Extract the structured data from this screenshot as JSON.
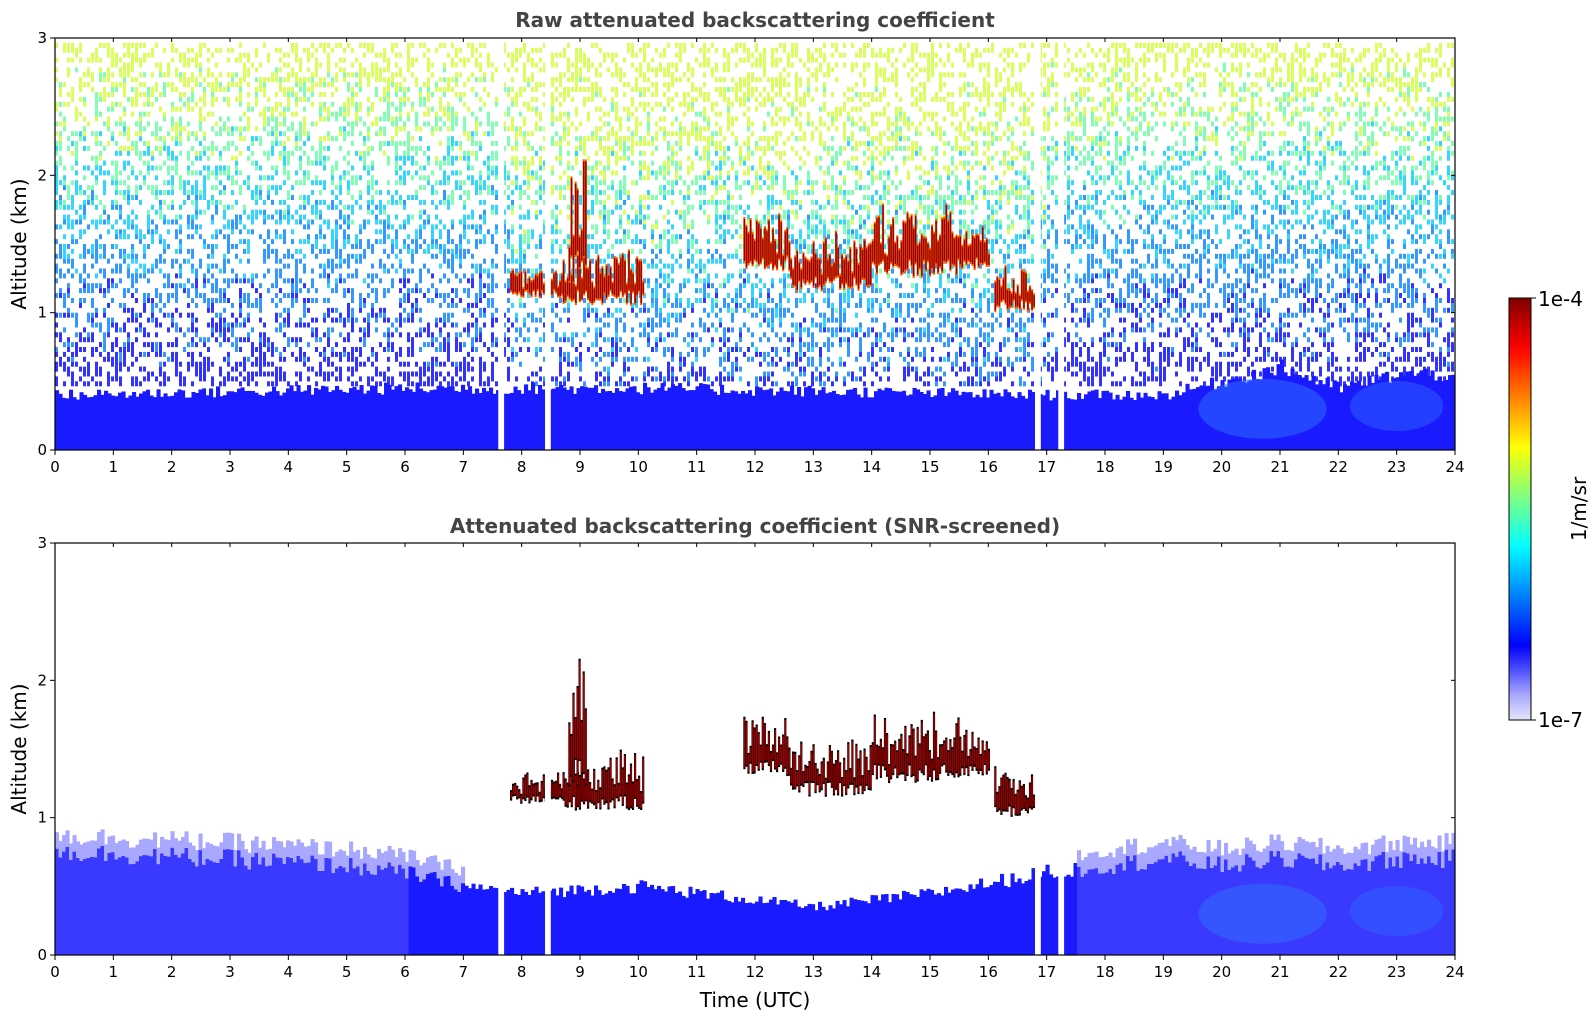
{
  "chart_data": [
    {
      "type": "heatmap",
      "title": "Raw attenuated backscattering coefficient",
      "xlabel": "",
      "ylabel": "Altitude (km)",
      "xlim": [
        0,
        24
      ],
      "ylim": [
        0,
        3
      ],
      "xticks": [
        "0",
        "1",
        "2",
        "3",
        "4",
        "5",
        "6",
        "7",
        "8",
        "9",
        "10",
        "11",
        "12",
        "13",
        "14",
        "15",
        "16",
        "17",
        "18",
        "19",
        "20",
        "21",
        "22",
        "23",
        "24"
      ],
      "yticks": [
        "0",
        "1",
        "2",
        "3"
      ],
      "background_noise_top": "scattered blue/cyan/green noise increasing with altitude",
      "boundary_layer_height_km": [
        [
          0,
          0.4
        ],
        [
          6,
          0.45
        ],
        [
          7,
          0.45
        ],
        [
          8,
          0.45
        ],
        [
          10,
          0.45
        ],
        [
          17,
          0.4
        ],
        [
          19,
          0.4
        ],
        [
          20,
          0.5
        ],
        [
          21,
          0.6
        ],
        [
          22,
          0.45
        ],
        [
          23,
          0.55
        ],
        [
          24,
          0.55
        ]
      ],
      "cloud_segments": [
        {
          "start": 7.8,
          "end": 8.7,
          "base_km": 1.1,
          "top_km": 1.3
        },
        {
          "start": 8.7,
          "end": 10.1,
          "base_km": 1.05,
          "top_km": 1.4
        },
        {
          "start": 8.8,
          "end": 9.1,
          "base_km": 1.2,
          "top_km": 2.0
        },
        {
          "start": 11.8,
          "end": 12.6,
          "base_km": 1.3,
          "top_km": 1.7
        },
        {
          "start": 12.6,
          "end": 14.0,
          "base_km": 1.15,
          "top_km": 1.5
        },
        {
          "start": 14.0,
          "end": 15.5,
          "base_km": 1.25,
          "top_km": 1.7
        },
        {
          "start": 15.5,
          "end": 16.0,
          "base_km": 1.3,
          "top_km": 1.6
        },
        {
          "start": 16.1,
          "end": 16.8,
          "base_km": 1.0,
          "top_km": 1.3
        }
      ],
      "missing_data_bands": [
        [
          7.6,
          7.7
        ],
        [
          8.4,
          8.5
        ],
        [
          16.8,
          16.9
        ],
        [
          17.2,
          17.3
        ]
      ]
    },
    {
      "type": "heatmap",
      "title": "Attenuated backscattering coefficient (SNR-screened)",
      "xlabel": "Time (UTC)",
      "ylabel": "Altitude (km)",
      "xlim": [
        0,
        24
      ],
      "ylim": [
        0,
        3
      ],
      "xticks": [
        "0",
        "1",
        "2",
        "3",
        "4",
        "5",
        "6",
        "7",
        "8",
        "9",
        "10",
        "11",
        "12",
        "13",
        "14",
        "15",
        "16",
        "17",
        "18",
        "19",
        "20",
        "21",
        "22",
        "23",
        "24"
      ],
      "yticks": [
        "0",
        "1",
        "2",
        "3"
      ],
      "boundary_layer_height_km": [
        [
          0,
          0.75
        ],
        [
          3,
          0.7
        ],
        [
          5,
          0.65
        ],
        [
          6,
          0.6
        ],
        [
          7,
          0.5
        ],
        [
          8,
          0.45
        ],
        [
          10,
          0.5
        ],
        [
          12,
          0.4
        ],
        [
          13,
          0.35
        ],
        [
          15,
          0.45
        ],
        [
          17,
          0.6
        ],
        [
          19,
          0.7
        ],
        [
          20,
          0.65
        ],
        [
          21,
          0.7
        ],
        [
          22,
          0.65
        ],
        [
          23,
          0.7
        ],
        [
          24,
          0.7
        ]
      ],
      "cloud_segments": [
        {
          "start": 7.8,
          "end": 8.7,
          "base_km": 1.1,
          "top_km": 1.3
        },
        {
          "start": 8.7,
          "end": 10.1,
          "base_km": 1.05,
          "top_km": 1.4
        },
        {
          "start": 8.8,
          "end": 9.1,
          "base_km": 1.2,
          "top_km": 2.0
        },
        {
          "start": 11.8,
          "end": 12.6,
          "base_km": 1.3,
          "top_km": 1.7
        },
        {
          "start": 12.6,
          "end": 14.0,
          "base_km": 1.15,
          "top_km": 1.5
        },
        {
          "start": 14.0,
          "end": 15.5,
          "base_km": 1.25,
          "top_km": 1.7
        },
        {
          "start": 15.5,
          "end": 16.0,
          "base_km": 1.3,
          "top_km": 1.6
        },
        {
          "start": 16.1,
          "end": 16.8,
          "base_km": 1.0,
          "top_km": 1.3
        }
      ],
      "missing_data_bands": [
        [
          7.6,
          7.7
        ],
        [
          8.4,
          8.5
        ],
        [
          16.8,
          16.9
        ],
        [
          17.2,
          17.3
        ]
      ]
    }
  ],
  "colorbar": {
    "max_label": "1e-4",
    "min_label": "1e-7",
    "units_label": "1/m/sr",
    "colors": [
      "#e6e6fa",
      "#a8a8ff",
      "#5050ff",
      "#0000ff",
      "#0040ff",
      "#0080ff",
      "#00bfff",
      "#00ffff",
      "#40ffbf",
      "#80ff80",
      "#bfff40",
      "#ffff00",
      "#ffbf00",
      "#ff8000",
      "#ff4000",
      "#ff0000",
      "#bf0000",
      "#800000"
    ]
  }
}
